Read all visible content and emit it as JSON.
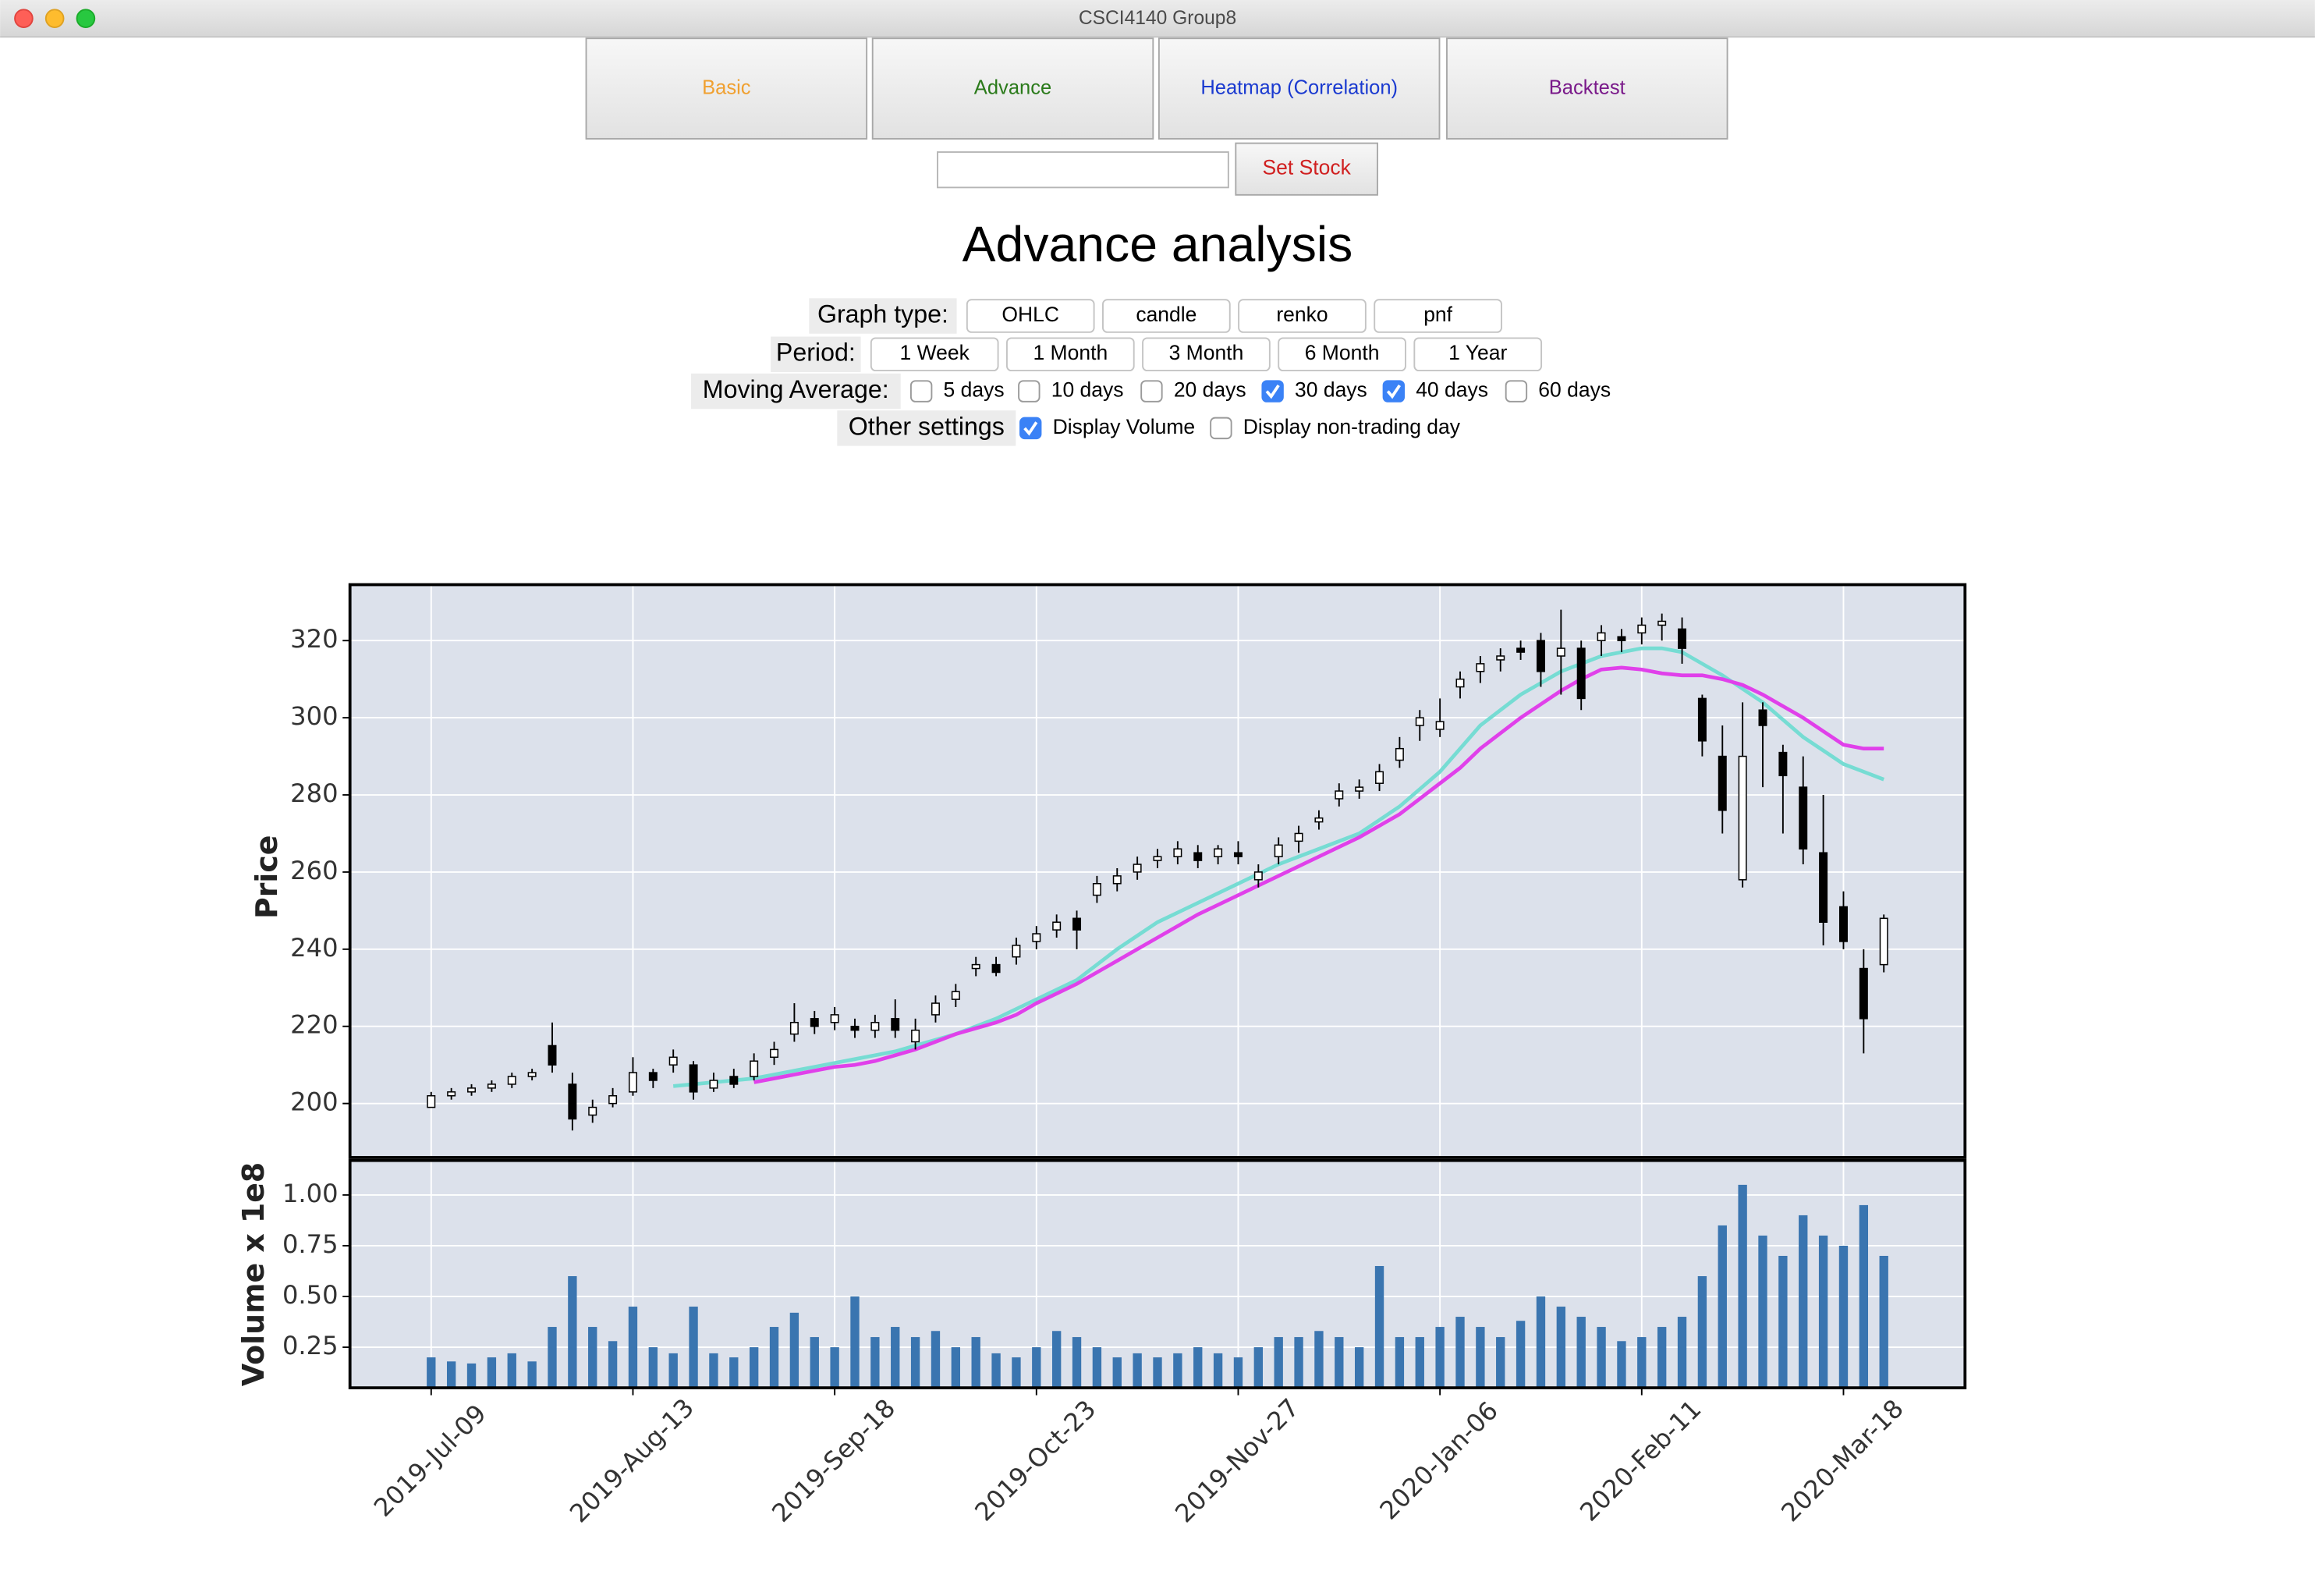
{
  "window": {
    "title": "CSCI4140 Group8"
  },
  "tabs": [
    {
      "label": "Basic",
      "color": "#f0a030"
    },
    {
      "label": "Advance",
      "color": "#2a7a1a"
    },
    {
      "label": "Heatmap (Correlation)",
      "color": "#1a3ad0"
    },
    {
      "label": "Backtest",
      "color": "#7a1a8a"
    }
  ],
  "set_stock_button": "Set Stock",
  "heading": "Advance analysis",
  "controls": {
    "graph_type": {
      "label": "Graph type:",
      "options": [
        "OHLC",
        "candle",
        "renko",
        "pnf"
      ]
    },
    "period": {
      "label": "Period:",
      "options": [
        "1 Week",
        "1 Month",
        "3 Month",
        "6 Month",
        "1 Year"
      ]
    },
    "moving_average": {
      "label": "Moving Average:",
      "options": [
        {
          "label": "5 days",
          "checked": false
        },
        {
          "label": "10 days",
          "checked": false
        },
        {
          "label": "20 days",
          "checked": false
        },
        {
          "label": "30 days",
          "checked": true
        },
        {
          "label": "40 days",
          "checked": true
        },
        {
          "label": "60 days",
          "checked": false
        }
      ]
    },
    "other_settings": {
      "label": "Other settings",
      "options": [
        {
          "label": "Display Volume",
          "checked": true
        },
        {
          "label": "Display non-trading day",
          "checked": false
        }
      ]
    }
  },
  "chart_data": {
    "type": "candlestick",
    "ylabel": "Price",
    "categories": [
      "2019-Jul-09",
      null,
      null,
      null,
      null,
      null,
      null,
      null,
      null,
      null,
      "2019-Aug-13",
      null,
      null,
      null,
      null,
      null,
      null,
      null,
      null,
      null,
      "2019-Sep-18",
      null,
      null,
      null,
      null,
      null,
      null,
      null,
      null,
      null,
      "2019-Oct-23",
      null,
      null,
      null,
      null,
      null,
      null,
      null,
      null,
      null,
      "2019-Nov-27",
      null,
      null,
      null,
      null,
      null,
      null,
      null,
      null,
      null,
      "2020-Jan-06",
      null,
      null,
      null,
      null,
      null,
      null,
      null,
      null,
      null,
      "2020-Feb-11",
      null,
      null,
      null,
      null,
      null,
      null,
      null,
      null,
      null,
      "2020-Mar-18",
      null,
      null
    ],
    "open": [
      199,
      202,
      203,
      204,
      205,
      207,
      215,
      205,
      197,
      200,
      203,
      208,
      210,
      210,
      204,
      207,
      207,
      212,
      218,
      222,
      221,
      220,
      219,
      222,
      216,
      223,
      227,
      235,
      236,
      238,
      242,
      245,
      248,
      254,
      257,
      260,
      263,
      264,
      265,
      264,
      265,
      258,
      264,
      268,
      273,
      279,
      281,
      283,
      289,
      298,
      297,
      308,
      312,
      315,
      318,
      320,
      316,
      318,
      320,
      321,
      322,
      324,
      323,
      305,
      290,
      258,
      302,
      291,
      282,
      265,
      251,
      235,
      236
    ],
    "high": [
      203,
      204,
      205,
      206,
      208,
      209,
      221,
      208,
      201,
      204,
      212,
      209,
      214,
      211,
      208,
      209,
      213,
      216,
      226,
      224,
      225,
      222,
      223,
      227,
      222,
      228,
      231,
      238,
      238,
      243,
      246,
      249,
      250,
      259,
      261,
      264,
      266,
      268,
      267,
      267,
      268,
      262,
      269,
      272,
      276,
      283,
      284,
      288,
      295,
      302,
      305,
      312,
      316,
      318,
      320,
      322,
      328,
      320,
      324,
      323,
      326,
      327,
      326,
      306,
      298,
      304,
      304,
      293,
      290,
      280,
      255,
      240,
      249
    ],
    "low": [
      199,
      201,
      202,
      203,
      204,
      206,
      208,
      193,
      195,
      199,
      202,
      204,
      208,
      201,
      203,
      204,
      206,
      210,
      216,
      218,
      219,
      217,
      217,
      217,
      214,
      221,
      225,
      233,
      233,
      236,
      240,
      243,
      240,
      252,
      255,
      258,
      261,
      262,
      261,
      262,
      262,
      256,
      262,
      265,
      271,
      277,
      279,
      281,
      287,
      294,
      295,
      305,
      309,
      312,
      315,
      308,
      306,
      302,
      316,
      317,
      319,
      320,
      314,
      290,
      270,
      256,
      282,
      270,
      262,
      241,
      240,
      213,
      234
    ],
    "close": [
      202,
      203,
      204,
      205,
      207,
      208,
      210,
      196,
      199,
      202,
      208,
      206,
      212,
      203,
      206,
      205,
      211,
      214,
      221,
      220,
      223,
      219,
      221,
      219,
      219,
      226,
      229,
      236,
      234,
      241,
      244,
      247,
      245,
      257,
      259,
      262,
      264,
      266,
      263,
      266,
      264,
      260,
      267,
      270,
      274,
      281,
      282,
      286,
      292,
      300,
      299,
      310,
      314,
      316,
      317,
      312,
      318,
      305,
      322,
      320,
      324,
      325,
      318,
      294,
      276,
      290,
      298,
      285,
      266,
      247,
      242,
      222,
      248
    ],
    "up_color": "#ffffff",
    "down_color": "#000000",
    "edge_color": "#000000",
    "moving_averages": [
      {
        "color": "#76dcd3",
        "values": [
          null,
          null,
          null,
          null,
          null,
          null,
          null,
          null,
          null,
          null,
          null,
          null,
          204.5,
          205,
          205.5,
          206,
          206.5,
          207.5,
          208.5,
          209.5,
          210.5,
          211.5,
          212.5,
          213.5,
          215,
          216.5,
          218,
          220,
          222,
          224.5,
          227,
          229.5,
          232,
          236,
          240,
          243.5,
          247,
          249.5,
          252,
          254.5,
          257,
          259.5,
          262,
          264,
          266,
          268,
          270,
          273.5,
          277,
          281.5,
          286,
          292,
          298,
          302,
          306,
          309,
          312,
          314,
          316,
          317,
          318,
          318,
          317,
          314,
          311,
          307.5,
          304,
          299.5,
          295,
          291.5,
          288,
          286,
          284
        ]
      },
      {
        "color": "#e040ea",
        "values": [
          null,
          null,
          null,
          null,
          null,
          null,
          null,
          null,
          null,
          null,
          null,
          null,
          null,
          null,
          null,
          null,
          205.5,
          206.5,
          207.5,
          208.5,
          209.5,
          210,
          211,
          212.5,
          214,
          216,
          218,
          219.5,
          221,
          223,
          226,
          228.5,
          231,
          234,
          237,
          240,
          243,
          246,
          249,
          251.5,
          254,
          256.5,
          259,
          261.5,
          264,
          266.5,
          269,
          272,
          275,
          279,
          283,
          287,
          292,
          296,
          300,
          303.5,
          307,
          310,
          312.5,
          313,
          312.5,
          311.5,
          311,
          311,
          310,
          308.5,
          306,
          303,
          300,
          296.5,
          293,
          292,
          292
        ]
      }
    ],
    "ylim": [
      186,
      334.5
    ],
    "yticks": [
      200,
      220,
      240,
      260,
      280,
      300,
      320
    ],
    "grid": true,
    "background": "#dce1eb",
    "volume": {
      "ylabel": "Volume x 1e8",
      "color": "#3a75b0",
      "ylim": [
        0.05,
        1.17
      ],
      "yticks": [
        0.25,
        {
          "value": 0.5,
          "label": "0.50"
        },
        0.75,
        {
          "value": 1.0,
          "label": "1.00"
        }
      ],
      "values": [
        0.2,
        0.18,
        0.17,
        0.2,
        0.22,
        0.18,
        0.35,
        0.6,
        0.35,
        0.28,
        0.45,
        0.25,
        0.22,
        0.45,
        0.22,
        0.2,
        0.25,
        0.35,
        0.42,
        0.3,
        0.25,
        0.5,
        0.3,
        0.35,
        0.3,
        0.33,
        0.25,
        0.3,
        0.22,
        0.2,
        0.25,
        0.33,
        0.3,
        0.25,
        0.2,
        0.22,
        0.2,
        0.22,
        0.25,
        0.22,
        0.2,
        0.25,
        0.3,
        0.3,
        0.33,
        0.3,
        0.25,
        0.65,
        0.3,
        0.3,
        0.35,
        0.4,
        0.35,
        0.3,
        0.38,
        0.5,
        0.45,
        0.4,
        0.35,
        0.28,
        0.3,
        0.35,
        0.4,
        0.6,
        0.85,
        1.05,
        0.8,
        0.7,
        0.9,
        0.8,
        0.75,
        0.95,
        0.7
      ]
    }
  }
}
